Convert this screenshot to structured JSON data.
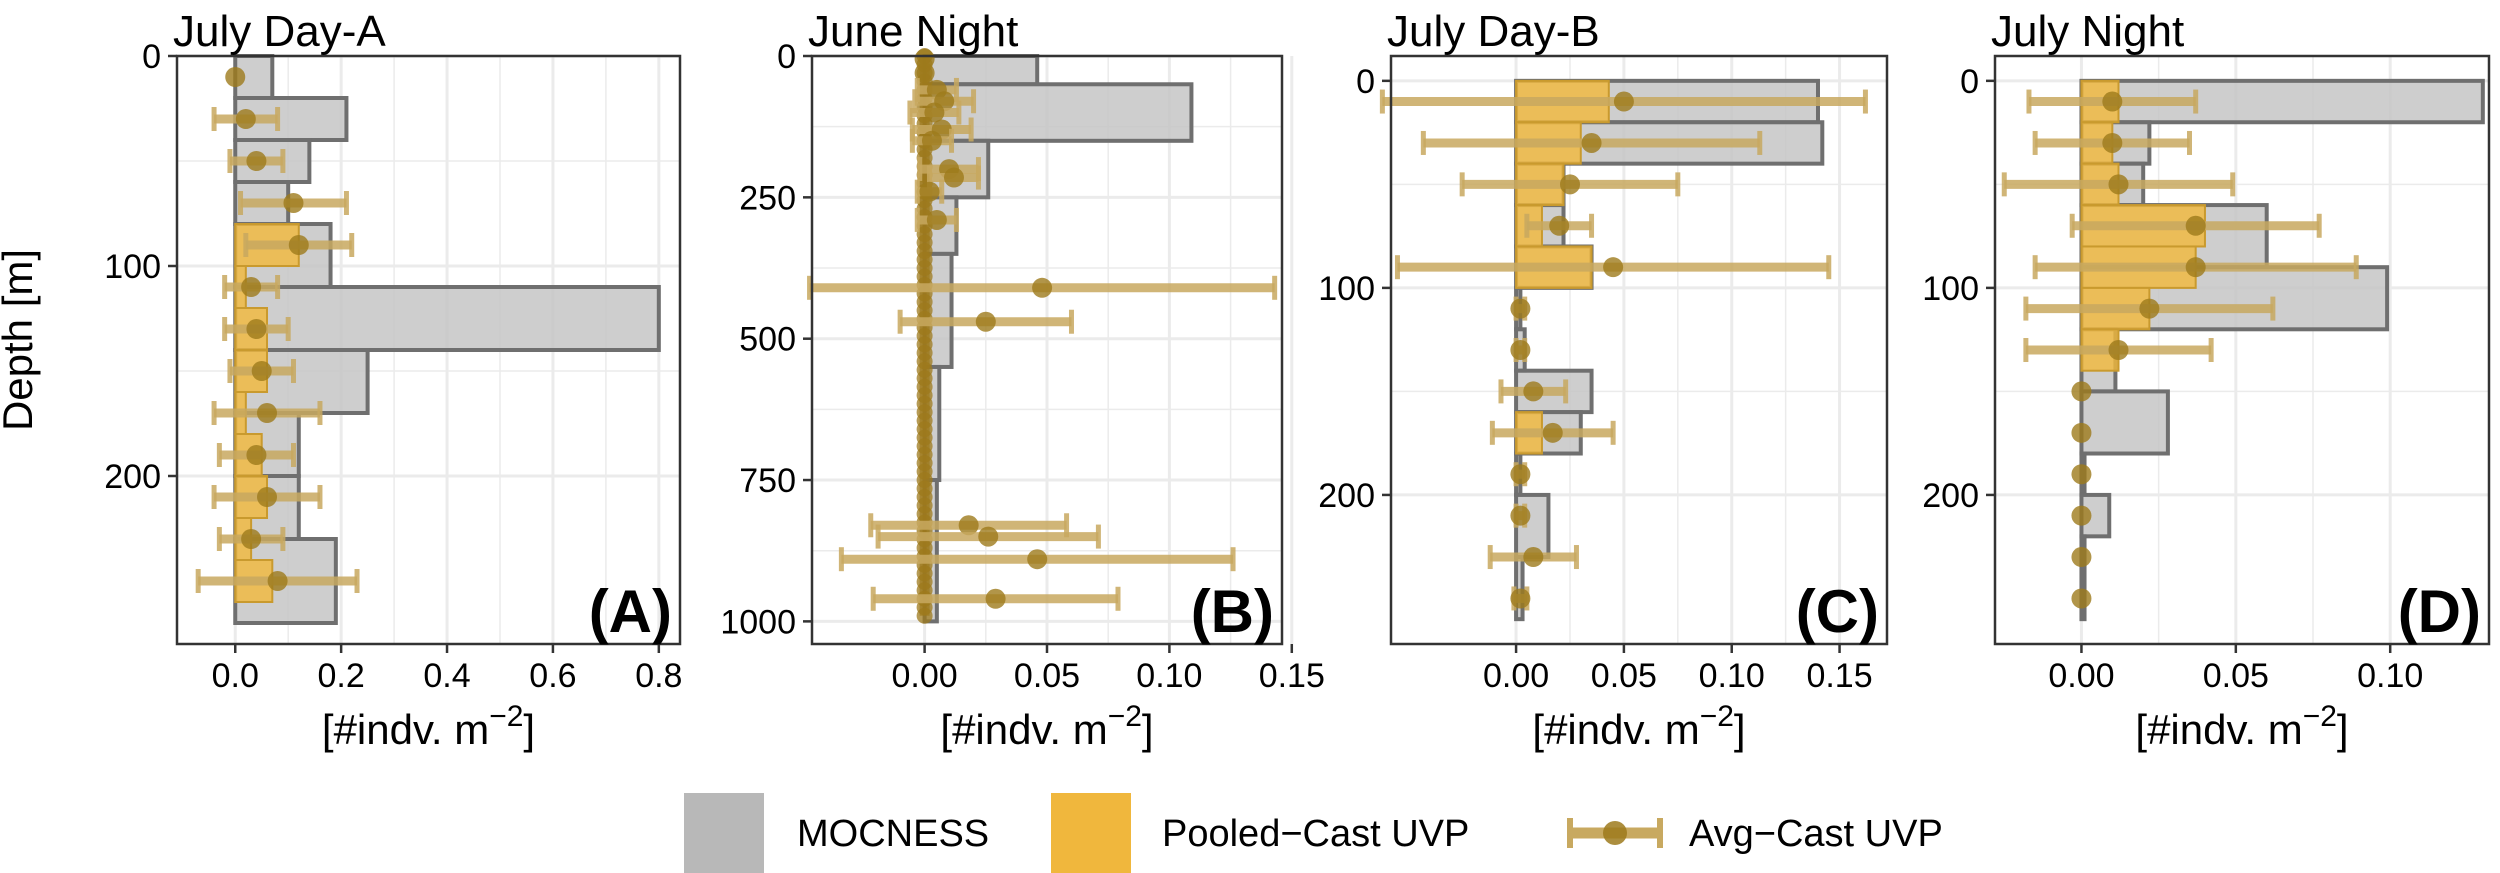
{
  "figure": {
    "legend": {
      "mocness": "MOCNESS",
      "pooled": "Pooled−Cast UVP",
      "avg": "Avg−Cast UVP"
    }
  },
  "colors": {
    "mocness_fill": "#c6c6c6",
    "mocness_stroke": "#6f6f6f",
    "pooled_fill": "#f2b93b",
    "pooled_stroke": "#c99a2e",
    "avg_point": "#9e7a1c",
    "avg_error": "#c8a960",
    "grid": "#ebebeb"
  },
  "chart_data": [
    {
      "type": "bar",
      "panel_label": "(A)",
      "title": "July Day-A",
      "xlabel": "[#indv. m",
      "xlabel_sup": "−2",
      "xlabel_close": "]",
      "ylabel": "Depth [m]",
      "xlim": [
        -0.11,
        0.84
      ],
      "ylim": [
        0,
        280
      ],
      "xticks": [
        0.0,
        0.2,
        0.4,
        0.6,
        0.8
      ],
      "xtick_labels": [
        "0.0",
        "0.2",
        "0.4",
        "0.6",
        "0.8"
      ],
      "yticks": [
        0,
        100,
        200
      ],
      "ytick_labels": [
        "0",
        "100",
        "200"
      ],
      "mocness": [
        {
          "top": 0,
          "bottom": 20,
          "value": 0.07
        },
        {
          "top": 20,
          "bottom": 40,
          "value": 0.21
        },
        {
          "top": 40,
          "bottom": 60,
          "value": 0.14
        },
        {
          "top": 60,
          "bottom": 80,
          "value": 0.1
        },
        {
          "top": 80,
          "bottom": 110,
          "value": 0.18
        },
        {
          "top": 110,
          "bottom": 140,
          "value": 0.8
        },
        {
          "top": 140,
          "bottom": 170,
          "value": 0.25
        },
        {
          "top": 170,
          "bottom": 200,
          "value": 0.12
        },
        {
          "top": 200,
          "bottom": 230,
          "value": 0.12
        },
        {
          "top": 230,
          "bottom": 270,
          "value": 0.19
        }
      ],
      "pooled": [
        {
          "top": 80,
          "bottom": 100,
          "value": 0.12
        },
        {
          "top": 100,
          "bottom": 120,
          "value": 0.02
        },
        {
          "top": 120,
          "bottom": 140,
          "value": 0.06
        },
        {
          "top": 140,
          "bottom": 160,
          "value": 0.06
        },
        {
          "top": 160,
          "bottom": 180,
          "value": 0.02
        },
        {
          "top": 180,
          "bottom": 200,
          "value": 0.05
        },
        {
          "top": 200,
          "bottom": 220,
          "value": 0.06
        },
        {
          "top": 220,
          "bottom": 240,
          "value": 0.03
        },
        {
          "top": 240,
          "bottom": 260,
          "value": 0.07
        }
      ],
      "avg": [
        {
          "depth": 10,
          "value": 0.0,
          "err": 0.0
        },
        {
          "depth": 30,
          "value": 0.02,
          "err": 0.06
        },
        {
          "depth": 50,
          "value": 0.04,
          "err": 0.05
        },
        {
          "depth": 70,
          "value": 0.11,
          "err": 0.1
        },
        {
          "depth": 90,
          "value": 0.12,
          "err": 0.1
        },
        {
          "depth": 110,
          "value": 0.03,
          "err": 0.05
        },
        {
          "depth": 130,
          "value": 0.04,
          "err": 0.06
        },
        {
          "depth": 150,
          "value": 0.05,
          "err": 0.06
        },
        {
          "depth": 170,
          "value": 0.06,
          "err": 0.1
        },
        {
          "depth": 190,
          "value": 0.04,
          "err": 0.07
        },
        {
          "depth": 210,
          "value": 0.06,
          "err": 0.1
        },
        {
          "depth": 230,
          "value": 0.03,
          "err": 0.06
        },
        {
          "depth": 250,
          "value": 0.08,
          "err": 0.15
        }
      ]
    },
    {
      "type": "bar",
      "panel_label": "(B)",
      "title": "June Night",
      "xlabel": "[#indv. m",
      "xlabel_sup": "−2",
      "xlabel_close": "]",
      "ylabel": "",
      "xlim": [
        -0.046,
        0.146
      ],
      "ylim": [
        0,
        1040
      ],
      "xticks": [
        0.0,
        0.05,
        0.1,
        0.15
      ],
      "xtick_labels": [
        "0.00",
        "0.05",
        "0.10",
        "0.15"
      ],
      "yticks": [
        0,
        250,
        500,
        750,
        1000
      ],
      "ytick_labels": [
        "0",
        "250",
        "500",
        "750",
        "1000"
      ],
      "mocness": [
        {
          "top": 0,
          "bottom": 50,
          "value": 0.046
        },
        {
          "top": 50,
          "bottom": 150,
          "value": 0.109
        },
        {
          "top": 150,
          "bottom": 250,
          "value": 0.026
        },
        {
          "top": 250,
          "bottom": 350,
          "value": 0.013
        },
        {
          "top": 350,
          "bottom": 550,
          "value": 0.011
        },
        {
          "top": 550,
          "bottom": 750,
          "value": 0.006
        },
        {
          "top": 750,
          "bottom": 1000,
          "value": 0.005
        }
      ],
      "pooled": [],
      "avg": [
        {
          "depth": 5,
          "value": 0.0,
          "err": 0.0
        },
        {
          "depth": 30,
          "value": 0.0,
          "err": 0.0
        },
        {
          "depth": 60,
          "value": 0.005,
          "err": 0.008
        },
        {
          "depth": 80,
          "value": 0.008,
          "err": 0.012
        },
        {
          "depth": 100,
          "value": 0.004,
          "err": 0.01
        },
        {
          "depth": 130,
          "value": 0.007,
          "err": 0.012
        },
        {
          "depth": 150,
          "value": 0.003,
          "err": 0.008
        },
        {
          "depth": 200,
          "value": 0.01,
          "err": 0.012
        },
        {
          "depth": 215,
          "value": 0.012,
          "err": 0.01
        },
        {
          "depth": 240,
          "value": 0.002,
          "err": 0.005
        },
        {
          "depth": 290,
          "value": 0.005,
          "err": 0.008
        },
        {
          "depth": 410,
          "value": 0.048,
          "err": 0.095
        },
        {
          "depth": 470,
          "value": 0.025,
          "err": 0.035
        },
        {
          "depth": 830,
          "value": 0.018,
          "err": 0.04
        },
        {
          "depth": 850,
          "value": 0.026,
          "err": 0.045
        },
        {
          "depth": 890,
          "value": 0.046,
          "err": 0.08
        },
        {
          "depth": 960,
          "value": 0.029,
          "err": 0.05
        }
      ],
      "avg_zero_column": {
        "from": 0,
        "to": 990,
        "step": 15
      }
    },
    {
      "type": "bar",
      "panel_label": "(C)",
      "title": "July Day-B",
      "xlabel": "[#indv. m",
      "xlabel_sup": "−2",
      "xlabel_close": "]",
      "ylabel": "",
      "xlim": [
        -0.058,
        0.172
      ],
      "ylim": [
        -12,
        272
      ],
      "xticks": [
        0.0,
        0.05,
        0.1,
        0.15
      ],
      "xtick_labels": [
        "0.00",
        "0.05",
        "0.10",
        "0.15"
      ],
      "yticks": [
        0,
        100,
        200
      ],
      "ytick_labels": [
        "0",
        "100",
        "200"
      ],
      "mocness": [
        {
          "top": 0,
          "bottom": 20,
          "value": 0.14
        },
        {
          "top": 20,
          "bottom": 40,
          "value": 0.142
        },
        {
          "top": 40,
          "bottom": 60,
          "value": 0.022
        },
        {
          "top": 60,
          "bottom": 80,
          "value": 0.022
        },
        {
          "top": 80,
          "bottom": 100,
          "value": 0.035
        },
        {
          "top": 100,
          "bottom": 120,
          "value": 0.002
        },
        {
          "top": 120,
          "bottom": 140,
          "value": 0.004
        },
        {
          "top": 140,
          "bottom": 160,
          "value": 0.035
        },
        {
          "top": 160,
          "bottom": 180,
          "value": 0.03
        },
        {
          "top": 180,
          "bottom": 200,
          "value": 0.002
        },
        {
          "top": 200,
          "bottom": 230,
          "value": 0.015
        },
        {
          "top": 230,
          "bottom": 260,
          "value": 0.003
        }
      ],
      "pooled": [
        {
          "top": 0,
          "bottom": 20,
          "value": 0.043
        },
        {
          "top": 20,
          "bottom": 40,
          "value": 0.03
        },
        {
          "top": 40,
          "bottom": 60,
          "value": 0.022
        },
        {
          "top": 60,
          "bottom": 80,
          "value": 0.012
        },
        {
          "top": 80,
          "bottom": 100,
          "value": 0.035
        },
        {
          "top": 160,
          "bottom": 180,
          "value": 0.012
        }
      ],
      "avg": [
        {
          "depth": 10,
          "value": 0.05,
          "err": 0.112
        },
        {
          "depth": 30,
          "value": 0.035,
          "err": 0.078
        },
        {
          "depth": 50,
          "value": 0.025,
          "err": 0.05
        },
        {
          "depth": 70,
          "value": 0.02,
          "err": 0.015
        },
        {
          "depth": 90,
          "value": 0.045,
          "err": 0.1
        },
        {
          "depth": 110,
          "value": 0.002,
          "err": 0.002
        },
        {
          "depth": 130,
          "value": 0.002,
          "err": 0.002
        },
        {
          "depth": 150,
          "value": 0.008,
          "err": 0.015
        },
        {
          "depth": 170,
          "value": 0.017,
          "err": 0.028
        },
        {
          "depth": 190,
          "value": 0.002,
          "err": 0.002
        },
        {
          "depth": 210,
          "value": 0.002,
          "err": 0.002
        },
        {
          "depth": 230,
          "value": 0.008,
          "err": 0.02
        },
        {
          "depth": 250,
          "value": 0.002,
          "err": 0.003
        }
      ]
    },
    {
      "type": "bar",
      "panel_label": "(D)",
      "title": "July Night",
      "xlabel": "[#indv. m",
      "xlabel_sup": "−2",
      "xlabel_close": "]",
      "ylabel": "",
      "xlim": [
        -0.028,
        0.132
      ],
      "ylim": [
        -12,
        272
      ],
      "xticks": [
        0.0,
        0.05,
        0.1
      ],
      "xtick_labels": [
        "0.00",
        "0.05",
        "0.10"
      ],
      "yticks": [
        0,
        100,
        200
      ],
      "ytick_labels": [
        "0",
        "100",
        "200"
      ],
      "mocness": [
        {
          "top": 0,
          "bottom": 20,
          "value": 0.13
        },
        {
          "top": 20,
          "bottom": 40,
          "value": 0.022
        },
        {
          "top": 40,
          "bottom": 60,
          "value": 0.02
        },
        {
          "top": 60,
          "bottom": 90,
          "value": 0.06
        },
        {
          "top": 90,
          "bottom": 120,
          "value": 0.099
        },
        {
          "top": 120,
          "bottom": 150,
          "value": 0.011
        },
        {
          "top": 150,
          "bottom": 180,
          "value": 0.028
        },
        {
          "top": 180,
          "bottom": 200,
          "value": 0.001
        },
        {
          "top": 200,
          "bottom": 220,
          "value": 0.009
        },
        {
          "top": 220,
          "bottom": 260,
          "value": 0.001
        }
      ],
      "pooled": [
        {
          "top": 0,
          "bottom": 20,
          "value": 0.012
        },
        {
          "top": 20,
          "bottom": 40,
          "value": 0.01
        },
        {
          "top": 40,
          "bottom": 60,
          "value": 0.012
        },
        {
          "top": 60,
          "bottom": 80,
          "value": 0.04
        },
        {
          "top": 80,
          "bottom": 100,
          "value": 0.037
        },
        {
          "top": 100,
          "bottom": 120,
          "value": 0.022
        },
        {
          "top": 120,
          "bottom": 140,
          "value": 0.012
        }
      ],
      "avg": [
        {
          "depth": 10,
          "value": 0.01,
          "err": 0.027
        },
        {
          "depth": 30,
          "value": 0.01,
          "err": 0.025
        },
        {
          "depth": 50,
          "value": 0.012,
          "err": 0.037
        },
        {
          "depth": 70,
          "value": 0.037,
          "err": 0.04
        },
        {
          "depth": 90,
          "value": 0.037,
          "err": 0.052
        },
        {
          "depth": 110,
          "value": 0.022,
          "err": 0.04
        },
        {
          "depth": 130,
          "value": 0.012,
          "err": 0.03
        },
        {
          "depth": 150,
          "value": 0.0,
          "err": 0.0
        },
        {
          "depth": 170,
          "value": 0.0,
          "err": 0.0
        },
        {
          "depth": 190,
          "value": 0.0,
          "err": 0.0
        },
        {
          "depth": 210,
          "value": 0.0,
          "err": 0.0
        },
        {
          "depth": 230,
          "value": 0.0,
          "err": 0.0
        },
        {
          "depth": 250,
          "value": 0.0,
          "err": 0.0
        }
      ]
    }
  ]
}
